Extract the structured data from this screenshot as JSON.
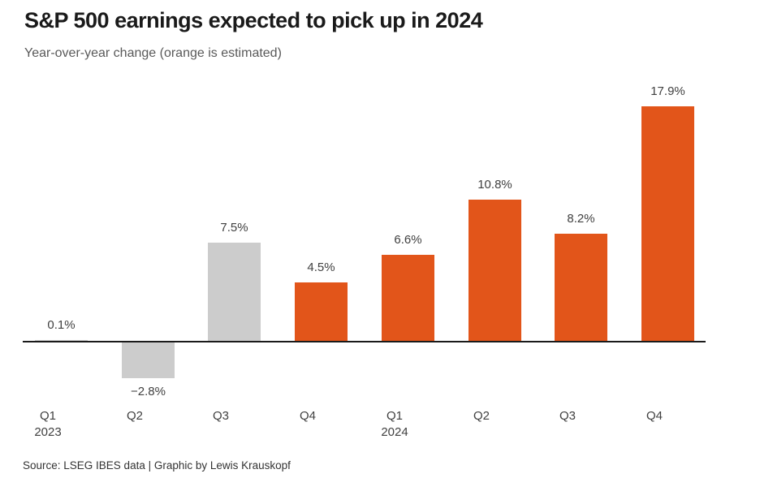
{
  "header": {
    "title": "S&P 500 earnings expected to pick up in 2024",
    "subtitle": "Year-over-year change (orange is estimated)"
  },
  "footer": {
    "source": "Source: LSEG IBES data | Graphic by Lewis Krauskopf"
  },
  "colors": {
    "actual_bar": "#cccccc",
    "estimated_bar": "#e2551a",
    "axis": "#1a1a1a",
    "label_text": "#404040"
  },
  "chart_data": {
    "type": "bar",
    "title": "S&P 500 earnings expected to pick up in 2024",
    "subtitle": "Year-over-year change (orange is estimated)",
    "xlabel": "",
    "ylabel": "Year-over-year change (%)",
    "categories": [
      "Q1 2023",
      "Q2 2023",
      "Q3 2023",
      "Q4 2023",
      "Q1 2024",
      "Q2 2024",
      "Q3 2024",
      "Q4 2024"
    ],
    "tick_labels": [
      "Q1",
      "Q2",
      "Q3",
      "Q4",
      "Q1",
      "Q2",
      "Q3",
      "Q4"
    ],
    "year_markers": [
      {
        "index": 0,
        "label": "2023"
      },
      {
        "index": 4,
        "label": "2024"
      }
    ],
    "values": [
      0.1,
      -2.8,
      7.5,
      4.5,
      6.6,
      10.8,
      8.2,
      17.9
    ],
    "value_labels": [
      "0.1%",
      "−2.8%",
      "7.5%",
      "4.5%",
      "6.6%",
      "10.8%",
      "8.2%",
      "17.9%"
    ],
    "estimated": [
      false,
      false,
      false,
      true,
      true,
      true,
      true,
      true
    ],
    "ylim": [
      -3.5,
      19
    ],
    "grid": false,
    "legend_position": "none",
    "annotation": "orange is estimated"
  }
}
